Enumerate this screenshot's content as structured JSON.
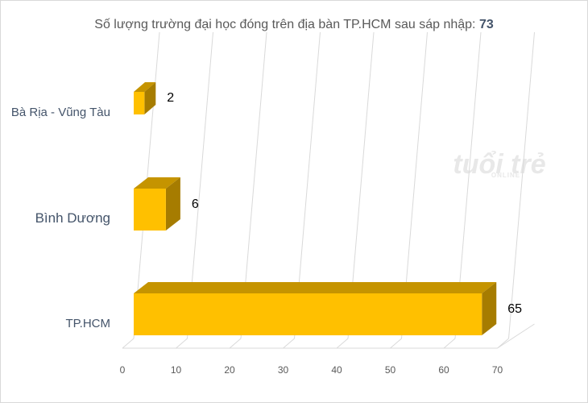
{
  "chart_data": {
    "type": "bar",
    "orientation": "horizontal",
    "title": "Số lượng trường đại học đóng trên địa bàn TP.HCM sau sáp nhập:",
    "title_total": "73",
    "categories": [
      "Bà Rịa - Vũng Tàu",
      "Bình Dương",
      "TP.HCM"
    ],
    "values": [
      2,
      6,
      65
    ],
    "xlim": [
      0,
      70
    ],
    "xticks": [
      0,
      10,
      20,
      30,
      40,
      50,
      60,
      70
    ],
    "grid": "vertical",
    "legend": "none",
    "style": "3d",
    "colors": {
      "bar_front": "#ffc000",
      "bar_top": "#c59400",
      "bar_side": "#a67c00",
      "grid": "#d9d9d9"
    }
  },
  "watermark": {
    "main": "tuổi trẻ",
    "sub": "ONLINE"
  }
}
